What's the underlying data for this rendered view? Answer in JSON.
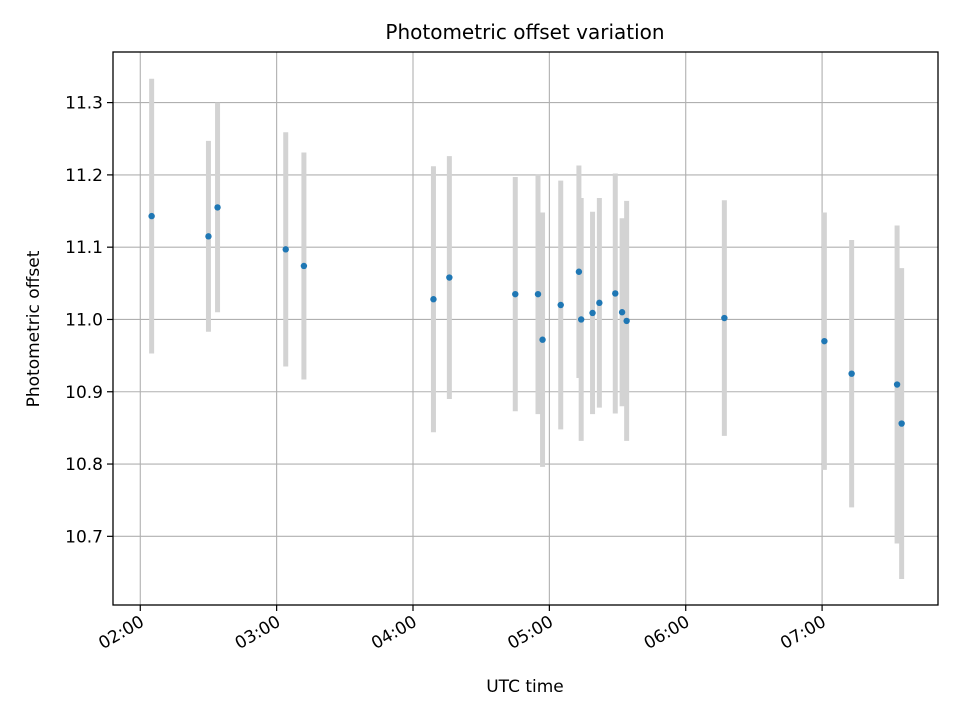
{
  "chart_data": {
    "type": "scatter",
    "title": "Photometric offset variation",
    "xlabel": "UTC time",
    "ylabel": "Photometric offset",
    "xlim": [
      "01:48",
      "07:51"
    ],
    "ylim": [
      10.605,
      11.37
    ],
    "grid": true,
    "x_ticks": [
      "02:00",
      "03:00",
      "04:00",
      "05:00",
      "06:00",
      "07:00"
    ],
    "y_ticks": [
      10.7,
      10.8,
      10.9,
      11.0,
      11.1,
      11.2,
      11.3
    ],
    "y_tick_labels": [
      "10.7",
      "10.8",
      "10.9",
      "11.0",
      "11.1",
      "11.2",
      "11.3"
    ],
    "point_color": "#1f77b4",
    "errorbar_color": "#d3d3d3",
    "points": [
      {
        "time": "02:05",
        "y": 11.143,
        "err": 0.19
      },
      {
        "time": "02:30",
        "y": 11.115,
        "err": 0.132
      },
      {
        "time": "02:34",
        "y": 11.155,
        "err": 0.145
      },
      {
        "time": "03:04",
        "y": 11.097,
        "err": 0.162
      },
      {
        "time": "03:12",
        "y": 11.074,
        "err": 0.157
      },
      {
        "time": "04:09",
        "y": 11.028,
        "err": 0.184
      },
      {
        "time": "04:16",
        "y": 11.058,
        "err": 0.168
      },
      {
        "time": "04:45",
        "y": 11.035,
        "err": 0.162
      },
      {
        "time": "04:55",
        "y": 11.035,
        "err": 0.166
      },
      {
        "time": "04:57",
        "y": 10.972,
        "err": 0.176
      },
      {
        "time": "05:05",
        "y": 11.02,
        "err": 0.172
      },
      {
        "time": "05:13",
        "y": 11.066,
        "err": 0.147
      },
      {
        "time": "05:14",
        "y": 11.0,
        "err": 0.168
      },
      {
        "time": "05:19",
        "y": 11.009,
        "err": 0.14
      },
      {
        "time": "05:22",
        "y": 11.023,
        "err": 0.145
      },
      {
        "time": "05:29",
        "y": 11.036,
        "err": 0.166
      },
      {
        "time": "05:32",
        "y": 11.01,
        "err": 0.13
      },
      {
        "time": "05:34",
        "y": 10.998,
        "err": 0.166
      },
      {
        "time": "06:17",
        "y": 11.002,
        "err": 0.163
      },
      {
        "time": "07:01",
        "y": 10.97,
        "err": 0.178
      },
      {
        "time": "07:13",
        "y": 10.925,
        "err": 0.185
      },
      {
        "time": "07:33",
        "y": 10.91,
        "err": 0.22
      },
      {
        "time": "07:35",
        "y": 10.856,
        "err": 0.215
      }
    ]
  }
}
